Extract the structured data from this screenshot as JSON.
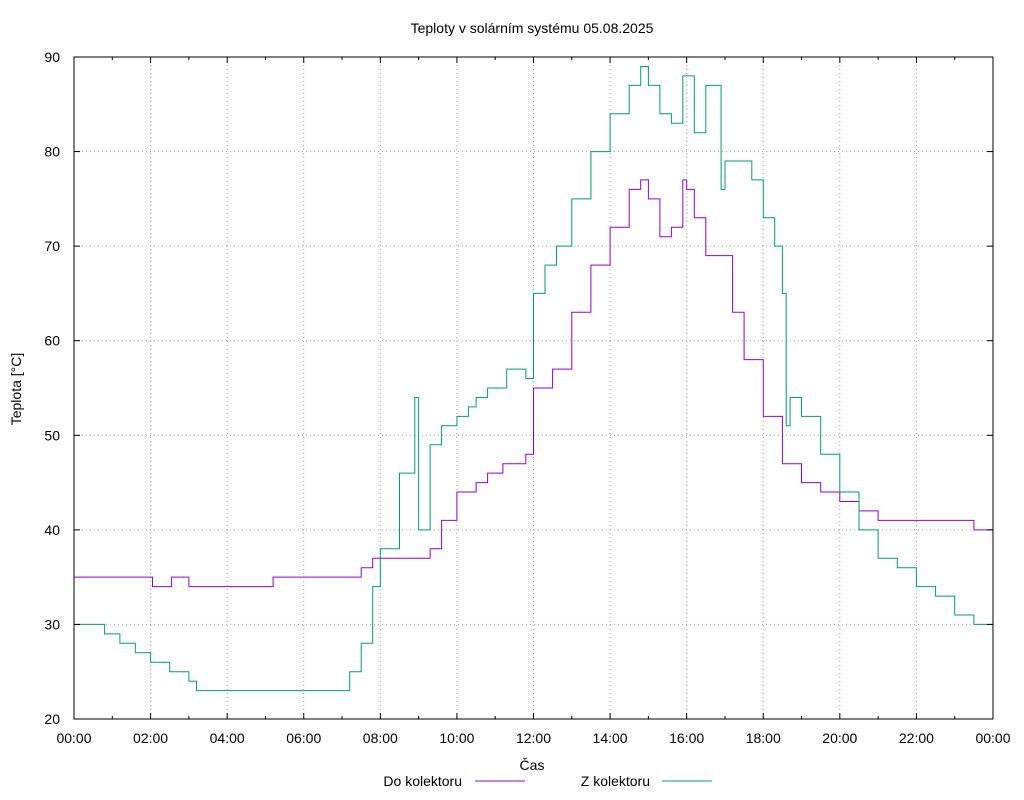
{
  "colors": {
    "series_1": "#9400d3",
    "series_2": "#009e73",
    "grid": "#a0a0a0",
    "axis": "#000000"
  },
  "chart_data": {
    "type": "line",
    "title": "Teploty v solárním systému 05.08.2025",
    "xlabel": "Čas",
    "ylabel": "Teplota [°C]",
    "xlim": [
      0,
      24
    ],
    "ylim": [
      20,
      90
    ],
    "grid": true,
    "legend_position": "bottom",
    "x_ticks": [
      0,
      2,
      4,
      6,
      8,
      10,
      12,
      14,
      16,
      18,
      20,
      22,
      24
    ],
    "x_tick_labels": [
      "00:00",
      "02:00",
      "04:00",
      "06:00",
      "08:00",
      "10:00",
      "12:00",
      "14:00",
      "16:00",
      "18:00",
      "20:00",
      "22:00",
      "00:00"
    ],
    "y_ticks": [
      20,
      30,
      40,
      50,
      60,
      70,
      80,
      90
    ],
    "y_tick_labels": [
      "20",
      "30",
      "40",
      "50",
      "60",
      "70",
      "80",
      "90"
    ],
    "series": [
      {
        "name": "Do kolektoru",
        "color": "#9400d3",
        "x": [
          0,
          2.0,
          2.05,
          2.5,
          2.55,
          3.0,
          3.5,
          3.7,
          4.0,
          5.0,
          5.2,
          6.0,
          6.5,
          7.5,
          7.8,
          8.0,
          8.5,
          9.0,
          9.3,
          9.6,
          10.0,
          10.5,
          10.8,
          11.2,
          11.7,
          11.8,
          12.0,
          12.5,
          13.0,
          13.5,
          14.0,
          14.5,
          14.8,
          15.0,
          15.3,
          15.6,
          15.9,
          16.0,
          16.2,
          16.5,
          16.8,
          17.2,
          17.5,
          18.0,
          18.5,
          18.7,
          19.0,
          19.5,
          20.0,
          20.5,
          21.0,
          21.5,
          22.0,
          23.5,
          23.7,
          24.0
        ],
        "y": [
          35,
          35,
          34,
          34,
          35,
          34,
          34,
          34,
          34,
          34,
          35,
          35,
          35,
          36,
          37,
          37,
          37,
          37,
          38,
          41,
          44,
          45,
          46,
          47,
          47,
          48,
          55,
          57,
          63,
          68,
          72,
          76,
          77,
          75,
          71,
          72,
          77,
          76,
          73,
          69,
          69,
          63,
          58,
          52,
          47,
          47,
          45,
          44,
          43,
          42,
          41,
          41,
          41,
          40,
          40,
          39
        ]
      },
      {
        "name": "Z kolektoru",
        "color": "#009e73",
        "x": [
          0,
          0.4,
          0.8,
          1.2,
          1.6,
          2.0,
          2.5,
          3.0,
          3.2,
          3.5,
          4.0,
          5.0,
          6.0,
          6.9,
          7.2,
          7.5,
          7.8,
          8.0,
          8.5,
          8.9,
          9.0,
          9.3,
          9.6,
          10.0,
          10.3,
          10.5,
          10.8,
          11.0,
          11.3,
          11.5,
          11.8,
          12.0,
          12.3,
          12.6,
          13.0,
          13.5,
          14.0,
          14.5,
          14.8,
          15.0,
          15.3,
          15.6,
          15.9,
          16.2,
          16.5,
          16.8,
          16.9,
          17.0,
          17.3,
          17.5,
          17.7,
          18.0,
          18.3,
          18.5,
          18.6,
          18.7,
          19.0,
          19.5,
          20.0,
          20.5,
          21.0,
          21.5,
          22.0,
          22.5,
          23.0,
          23.5,
          24.0
        ],
        "y": [
          30,
          30,
          29,
          28,
          27,
          26,
          25,
          24,
          23,
          23,
          23,
          23,
          23,
          23,
          25,
          28,
          34,
          38,
          46,
          54,
          40,
          49,
          51,
          52,
          53,
          54,
          55,
          55,
          57,
          57,
          56,
          65,
          68,
          70,
          75,
          80,
          84,
          87,
          89,
          87,
          84,
          83,
          88,
          82,
          87,
          87,
          76,
          79,
          79,
          79,
          77,
          73,
          70,
          65,
          51,
          54,
          52,
          48,
          44,
          40,
          37,
          36,
          34,
          33,
          31,
          30,
          29
        ]
      }
    ]
  }
}
